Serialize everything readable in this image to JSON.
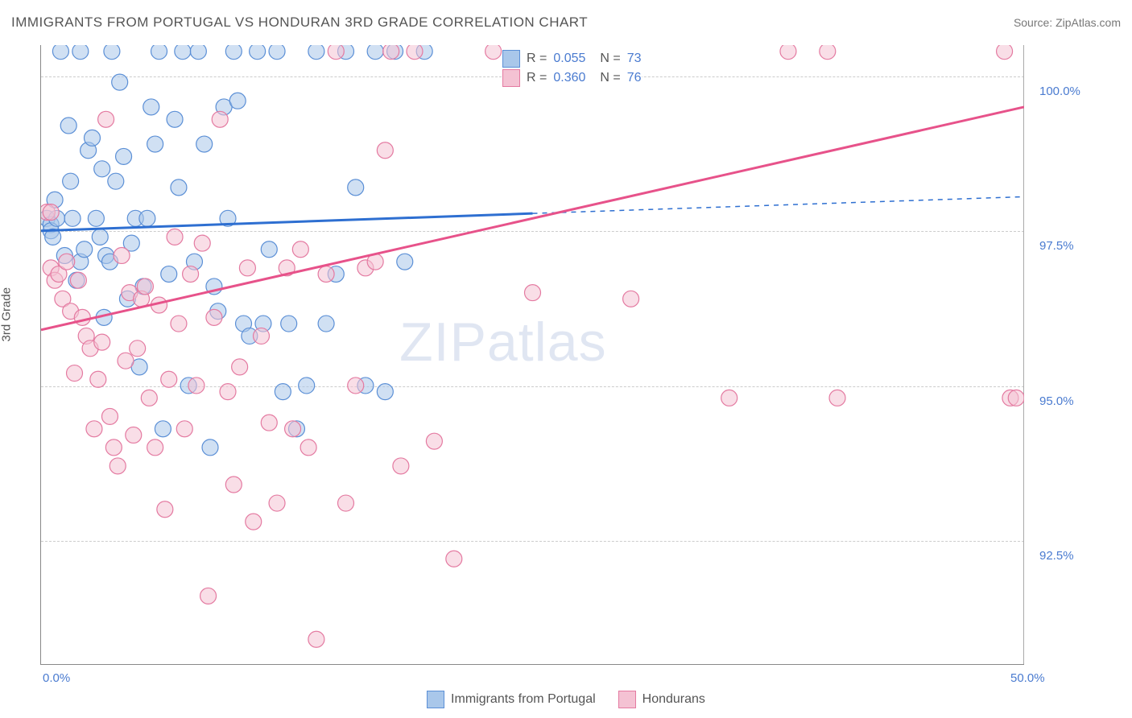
{
  "title": "IMMIGRANTS FROM PORTUGAL VS HONDURAN 3RD GRADE CORRELATION CHART",
  "source": "Source: ZipAtlas.com",
  "y_axis_label": "3rd Grade",
  "watermark": "ZIPatlas",
  "chart": {
    "type": "scatter",
    "xlim": [
      0,
      50
    ],
    "ylim": [
      90.5,
      100.5
    ],
    "x_ticks": [
      0.0,
      50.0
    ],
    "x_tick_labels": [
      "0.0%",
      "50.0%"
    ],
    "y_ticks": [
      92.5,
      95.0,
      97.5,
      100.0
    ],
    "y_tick_labels": [
      "92.5%",
      "95.0%",
      "97.5%",
      "100.0%"
    ],
    "grid_color": "#d0d0d0",
    "grid_style": "dashed",
    "background_color": "#ffffff",
    "marker_radius": 10,
    "marker_opacity": 0.55,
    "series": [
      {
        "name": "Immigants from Portugal",
        "legend_label": "Immigrants from Portugal",
        "color_fill": "#a9c7ea",
        "color_stroke": "#5b8fd6",
        "line_color": "#2e6fd1",
        "line_width": 3,
        "dash_extension": true,
        "R": "0.055",
        "N": "73",
        "regression": {
          "x1": 0,
          "y1": 97.5,
          "x2": 25,
          "y2": 97.78,
          "x2_ext": 50,
          "y2_ext": 98.05
        },
        "points": [
          [
            0.3,
            97.7
          ],
          [
            0.5,
            97.6
          ],
          [
            0.5,
            97.5
          ],
          [
            0.7,
            98.0
          ],
          [
            0.8,
            97.7
          ],
          [
            0.6,
            97.4
          ],
          [
            1.0,
            100.4
          ],
          [
            1.2,
            97.1
          ],
          [
            1.4,
            99.2
          ],
          [
            1.5,
            98.3
          ],
          [
            1.6,
            97.7
          ],
          [
            1.8,
            96.7
          ],
          [
            2.0,
            97.0
          ],
          [
            2.0,
            100.4
          ],
          [
            2.2,
            97.2
          ],
          [
            2.4,
            98.8
          ],
          [
            2.6,
            99.0
          ],
          [
            2.8,
            97.7
          ],
          [
            3.0,
            97.4
          ],
          [
            3.1,
            98.5
          ],
          [
            3.2,
            96.1
          ],
          [
            3.3,
            97.1
          ],
          [
            3.5,
            97.0
          ],
          [
            3.6,
            100.4
          ],
          [
            3.8,
            98.3
          ],
          [
            4.0,
            99.9
          ],
          [
            4.2,
            98.7
          ],
          [
            4.4,
            96.4
          ],
          [
            4.6,
            97.3
          ],
          [
            4.8,
            97.7
          ],
          [
            5.0,
            95.3
          ],
          [
            5.2,
            96.6
          ],
          [
            5.4,
            97.7
          ],
          [
            5.6,
            99.5
          ],
          [
            5.8,
            98.9
          ],
          [
            6.0,
            100.4
          ],
          [
            6.2,
            94.3
          ],
          [
            6.5,
            96.8
          ],
          [
            6.8,
            99.3
          ],
          [
            7.0,
            98.2
          ],
          [
            7.2,
            100.4
          ],
          [
            7.5,
            95.0
          ],
          [
            7.8,
            97.0
          ],
          [
            8.0,
            100.4
          ],
          [
            8.3,
            98.9
          ],
          [
            8.6,
            94.0
          ],
          [
            8.8,
            96.6
          ],
          [
            9.0,
            96.2
          ],
          [
            9.3,
            99.5
          ],
          [
            9.5,
            97.7
          ],
          [
            9.8,
            100.4
          ],
          [
            10.0,
            99.6
          ],
          [
            10.3,
            96.0
          ],
          [
            10.6,
            95.8
          ],
          [
            11.0,
            100.4
          ],
          [
            11.3,
            96.0
          ],
          [
            11.6,
            97.2
          ],
          [
            12.0,
            100.4
          ],
          [
            12.3,
            94.9
          ],
          [
            12.6,
            96.0
          ],
          [
            13.0,
            94.3
          ],
          [
            13.5,
            95.0
          ],
          [
            14.0,
            100.4
          ],
          [
            14.5,
            96.0
          ],
          [
            15.0,
            96.8
          ],
          [
            15.5,
            100.4
          ],
          [
            16.0,
            98.2
          ],
          [
            16.5,
            95.0
          ],
          [
            17.0,
            100.4
          ],
          [
            17.5,
            94.9
          ],
          [
            18.0,
            100.4
          ],
          [
            18.5,
            97.0
          ],
          [
            19.5,
            100.4
          ]
        ]
      },
      {
        "name": "Hondurans",
        "legend_label": "Hondurans",
        "color_fill": "#f4c2d3",
        "color_stroke": "#e47aa1",
        "line_color": "#e7528a",
        "line_width": 3,
        "dash_extension": false,
        "R": "0.360",
        "N": "76",
        "regression": {
          "x1": 0,
          "y1": 95.9,
          "x2": 50,
          "y2": 99.5
        },
        "points": [
          [
            0.3,
            97.8
          ],
          [
            0.5,
            96.9
          ],
          [
            0.5,
            97.8
          ],
          [
            0.7,
            96.7
          ],
          [
            0.9,
            96.8
          ],
          [
            1.1,
            96.4
          ],
          [
            1.3,
            97.0
          ],
          [
            1.5,
            96.2
          ],
          [
            1.7,
            95.2
          ],
          [
            1.9,
            96.7
          ],
          [
            2.1,
            96.1
          ],
          [
            2.3,
            95.8
          ],
          [
            2.5,
            95.6
          ],
          [
            2.7,
            94.3
          ],
          [
            2.9,
            95.1
          ],
          [
            3.1,
            95.7
          ],
          [
            3.3,
            99.3
          ],
          [
            3.5,
            94.5
          ],
          [
            3.7,
            94.0
          ],
          [
            3.9,
            93.7
          ],
          [
            4.1,
            97.1
          ],
          [
            4.3,
            95.4
          ],
          [
            4.5,
            96.5
          ],
          [
            4.7,
            94.2
          ],
          [
            4.9,
            95.6
          ],
          [
            5.1,
            96.4
          ],
          [
            5.3,
            96.6
          ],
          [
            5.5,
            94.8
          ],
          [
            5.8,
            94.0
          ],
          [
            6.0,
            96.3
          ],
          [
            6.3,
            93.0
          ],
          [
            6.5,
            95.1
          ],
          [
            6.8,
            97.4
          ],
          [
            7.0,
            96.0
          ],
          [
            7.3,
            94.3
          ],
          [
            7.6,
            96.8
          ],
          [
            7.9,
            95.0
          ],
          [
            8.2,
            97.3
          ],
          [
            8.5,
            91.6
          ],
          [
            8.8,
            96.1
          ],
          [
            9.1,
            99.3
          ],
          [
            9.5,
            94.9
          ],
          [
            9.8,
            93.4
          ],
          [
            10.1,
            95.3
          ],
          [
            10.5,
            96.9
          ],
          [
            10.8,
            92.8
          ],
          [
            11.2,
            95.8
          ],
          [
            11.6,
            94.4
          ],
          [
            12.0,
            93.1
          ],
          [
            12.5,
            96.9
          ],
          [
            12.8,
            94.3
          ],
          [
            13.2,
            97.2
          ],
          [
            13.6,
            94.0
          ],
          [
            14.0,
            90.9
          ],
          [
            14.5,
            96.8
          ],
          [
            15.0,
            100.4
          ],
          [
            15.5,
            93.1
          ],
          [
            16.0,
            95.0
          ],
          [
            16.5,
            96.9
          ],
          [
            17.0,
            97.0
          ],
          [
            17.5,
            98.8
          ],
          [
            17.8,
            100.4
          ],
          [
            18.3,
            93.7
          ],
          [
            19.0,
            100.4
          ],
          [
            20.0,
            94.1
          ],
          [
            21.0,
            92.2
          ],
          [
            23.0,
            100.4
          ],
          [
            25.0,
            96.5
          ],
          [
            30.0,
            96.4
          ],
          [
            35.0,
            94.8
          ],
          [
            38.0,
            100.4
          ],
          [
            40.0,
            100.4
          ],
          [
            40.5,
            94.8
          ],
          [
            49.0,
            100.4
          ],
          [
            49.3,
            94.8
          ],
          [
            49.6,
            94.8
          ]
        ]
      }
    ]
  },
  "colors": {
    "title": "#555555",
    "axis_label": "#555555",
    "tick_label": "#4a7bd0",
    "legend_val": "#4a7bd0",
    "watermark": "#c8d3e8"
  }
}
